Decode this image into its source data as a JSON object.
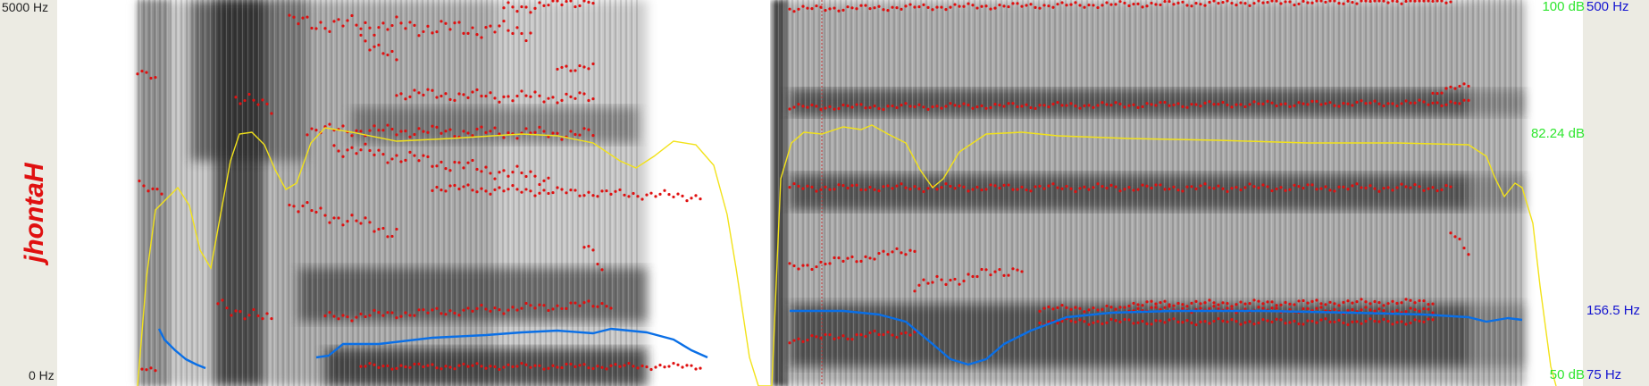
{
  "axes": {
    "freq_top": "5000 Hz",
    "freq_bottom": "0 Hz",
    "intensity_top": "100 dB",
    "intensity_mid": "82.24 dB",
    "intensity_bottom": "50 dB",
    "pitch_top": "500 Hz",
    "pitch_mid": "156.5 Hz",
    "pitch_bottom": "75 Hz"
  },
  "word_label": "jhontaH",
  "colors": {
    "formant": "#e01010",
    "intensity": "#f2e21a",
    "pitch": "#0a6fe6",
    "cursor": "#c03030",
    "db_label": "#2ee62e",
    "pitch_label": "#1515d0",
    "word": "#e01010"
  },
  "chart_data": {
    "type": "line",
    "pitch_range_hz": [
      75,
      500
    ],
    "intensity_range_db": [
      50,
      100
    ],
    "frequency_range_hz": [
      0,
      5000
    ],
    "reference_values": {
      "intensity_db": 82.24,
      "pitch_hz": 156.5
    }
  }
}
